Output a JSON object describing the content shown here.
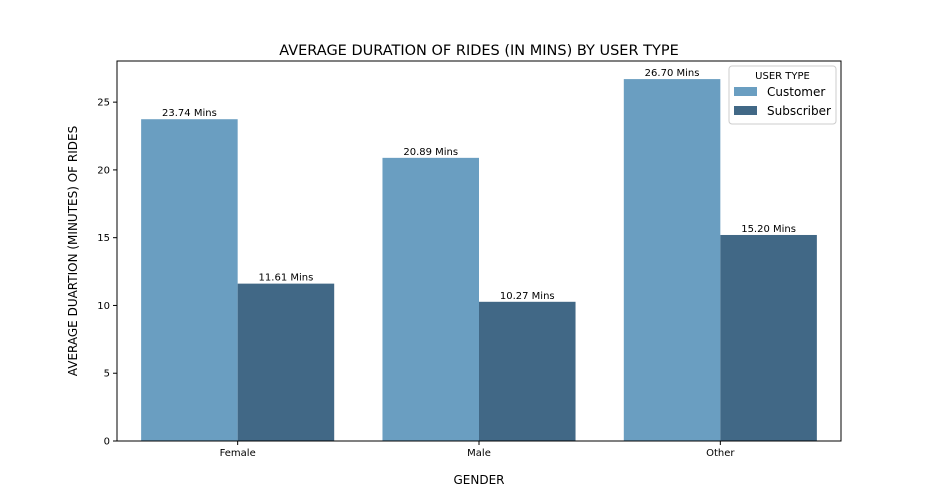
{
  "chart_data": {
    "type": "bar",
    "title": "AVERAGE DURATION OF RIDES (IN MINS) BY USER TYPE",
    "xlabel": "GENDER",
    "ylabel": "AVERAGE DUARTION (MINUTES) OF RIDES",
    "categories": [
      "Female",
      "Male",
      "Other"
    ],
    "series": [
      {
        "name": "Customer",
        "values": [
          23.74,
          20.89,
          26.7
        ],
        "labels": [
          "23.74 Mins",
          "20.89 Mins",
          "26.70 Mins"
        ],
        "color": "#6a9ec1"
      },
      {
        "name": "Subscriber",
        "values": [
          11.61,
          10.27,
          15.2
        ],
        "labels": [
          "11.61 Mins",
          "10.27 Mins",
          "15.20 Mins"
        ],
        "color": "#416886"
      }
    ],
    "ylim": [
      0,
      28.035
    ],
    "yticks": [
      0,
      5,
      10,
      15,
      20,
      25
    ],
    "grid": false,
    "legend": {
      "title": "USER TYPE",
      "placement": "top-right"
    }
  }
}
